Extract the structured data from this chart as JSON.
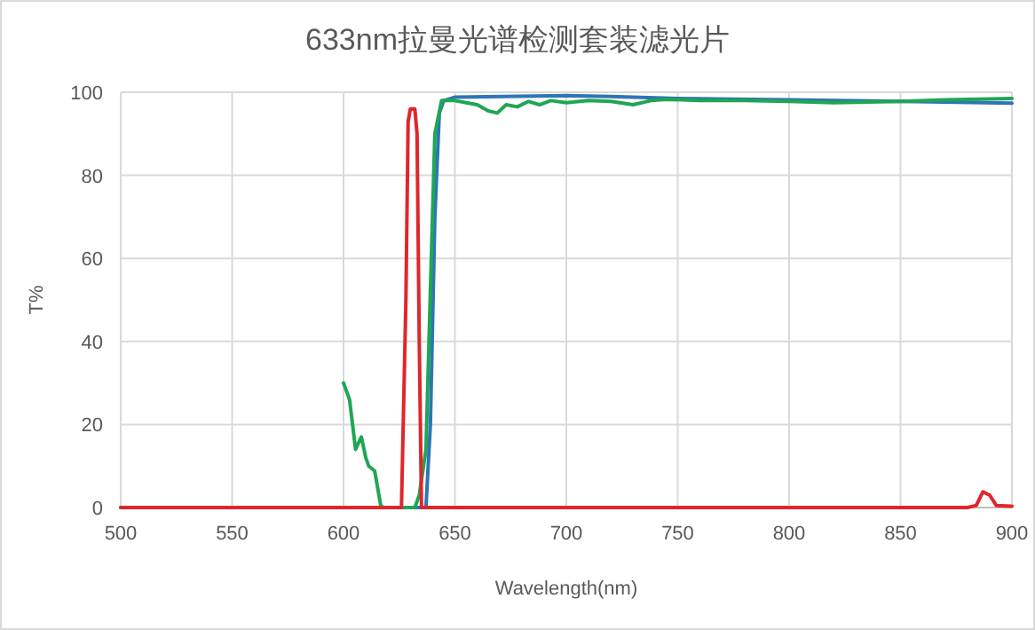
{
  "chart_data": {
    "type": "line",
    "title": "633nm拉曼光谱检测套装滤光片",
    "xlabel": "Wavelength(nm)",
    "ylabel": "T%",
    "xlim": [
      500,
      900
    ],
    "xticks": [
      500,
      550,
      600,
      650,
      700,
      750,
      800,
      850,
      900
    ],
    "ylim": [
      0,
      100
    ],
    "yticks": [
      0,
      20,
      40,
      60,
      80,
      100
    ],
    "grid": true,
    "marker": "none",
    "line_style": "solid",
    "series": [
      {
        "color": "#2e75b6",
        "x": [
          500,
          637,
          639,
          641,
          643,
          645,
          650,
          700,
          720,
          750,
          800,
          850,
          900
        ],
        "values": [
          0,
          0,
          20,
          70,
          95,
          98,
          98.8,
          99.2,
          99,
          98.5,
          98.2,
          97.8,
          97.4
        ]
      },
      {
        "color": "#1fa654",
        "x": [
          600,
          602.7,
          605.4,
          608,
          610,
          611.3,
          614,
          616.7,
          618,
          632,
          634,
          637,
          639.5,
          641,
          644,
          650,
          655,
          660,
          665,
          669,
          673,
          678,
          683,
          688,
          693,
          700,
          710,
          720,
          730,
          738,
          745,
          760,
          780,
          800,
          820,
          850,
          870,
          900
        ],
        "values": [
          30,
          26,
          14,
          17,
          12,
          10,
          8.8,
          0.5,
          0,
          0,
          3,
          14,
          62,
          90,
          98,
          98,
          97.5,
          97,
          95.5,
          95,
          97,
          96.5,
          97.8,
          97,
          98,
          97.5,
          98,
          97.8,
          97,
          98,
          98.3,
          98,
          98,
          97.8,
          97.5,
          97.8,
          98.2,
          98.5
        ]
      },
      {
        "color": "#e0262b",
        "x": [
          500,
          626,
          628,
          629,
          630,
          632,
          633,
          634,
          635,
          880,
          884,
          887,
          890,
          893,
          900
        ],
        "values": [
          0,
          0,
          50,
          93,
          96,
          96,
          90,
          40,
          0,
          0,
          0.5,
          3.8,
          3,
          0.5,
          0.3
        ]
      }
    ]
  }
}
